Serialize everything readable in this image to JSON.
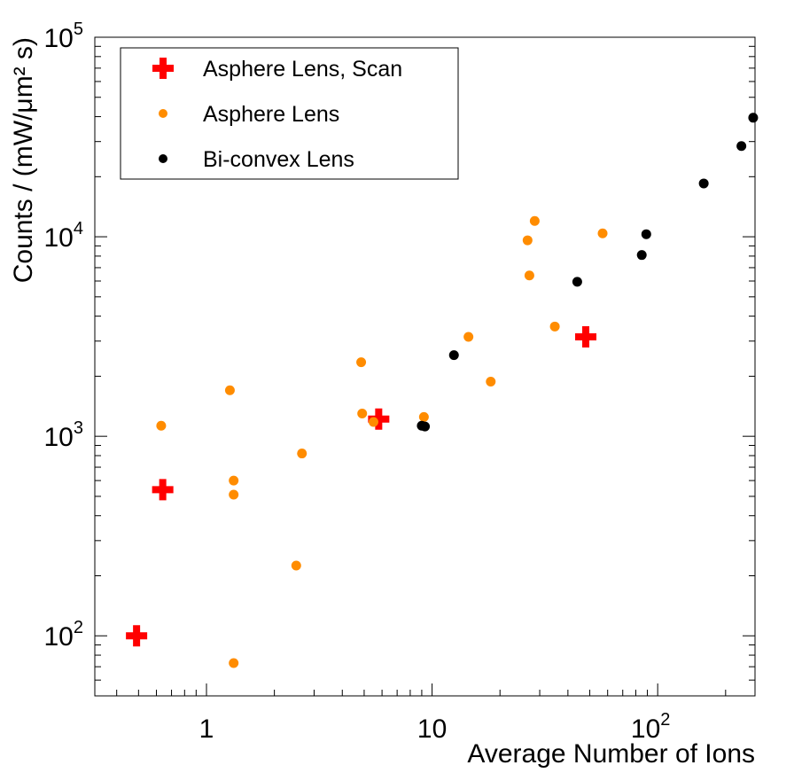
{
  "chart_data": {
    "type": "scatter",
    "xlabel": "Average Number of Ions",
    "ylabel": "Counts / (mW/μm² s)",
    "xscale": "log",
    "yscale": "log",
    "xlim": [
      0.32,
      270
    ],
    "ylim": [
      50,
      100000
    ],
    "grid": false,
    "legend_position": "top-left",
    "x_ticks": [
      {
        "value": 1,
        "base": "1",
        "exp": ""
      },
      {
        "value": 10,
        "base": "10",
        "exp": ""
      },
      {
        "value": 100,
        "base": "10",
        "exp": "2"
      }
    ],
    "y_ticks": [
      {
        "value": 100,
        "base": "10",
        "exp": "2"
      },
      {
        "value": 1000,
        "base": "10",
        "exp": "3"
      },
      {
        "value": 10000,
        "base": "10",
        "exp": "4"
      },
      {
        "value": 100000,
        "base": "10",
        "exp": "5"
      }
    ],
    "series": [
      {
        "name": "Asphere Lens, Scan",
        "marker": "cross",
        "color": "#ff0000",
        "x": [
          0.49,
          0.64,
          5.8,
          48
        ],
        "y": [
          100,
          540,
          1220,
          3150
        ]
      },
      {
        "name": "Asphere Lens",
        "marker": "circle",
        "color": "#ff8c00",
        "x": [
          0.63,
          1.27,
          1.32,
          1.32,
          1.32,
          2.5,
          2.65,
          4.85,
          4.9,
          5.5,
          9.2,
          14.5,
          18.2,
          26.5,
          27,
          28.5,
          35,
          57
        ],
        "y": [
          1130,
          1700,
          600,
          510,
          73,
          225,
          820,
          2350,
          1300,
          1180,
          1250,
          3150,
          1880,
          9600,
          6400,
          12000,
          3550,
          10400
        ]
      },
      {
        "name": "Bi-convex Lens",
        "marker": "circle",
        "color": "#000000",
        "x": [
          9.0,
          9.3,
          12.5,
          44,
          85,
          89,
          160,
          235,
          265
        ],
        "y": [
          1130,
          1120,
          2550,
          5950,
          8100,
          10300,
          18500,
          28500,
          39500
        ]
      }
    ]
  }
}
